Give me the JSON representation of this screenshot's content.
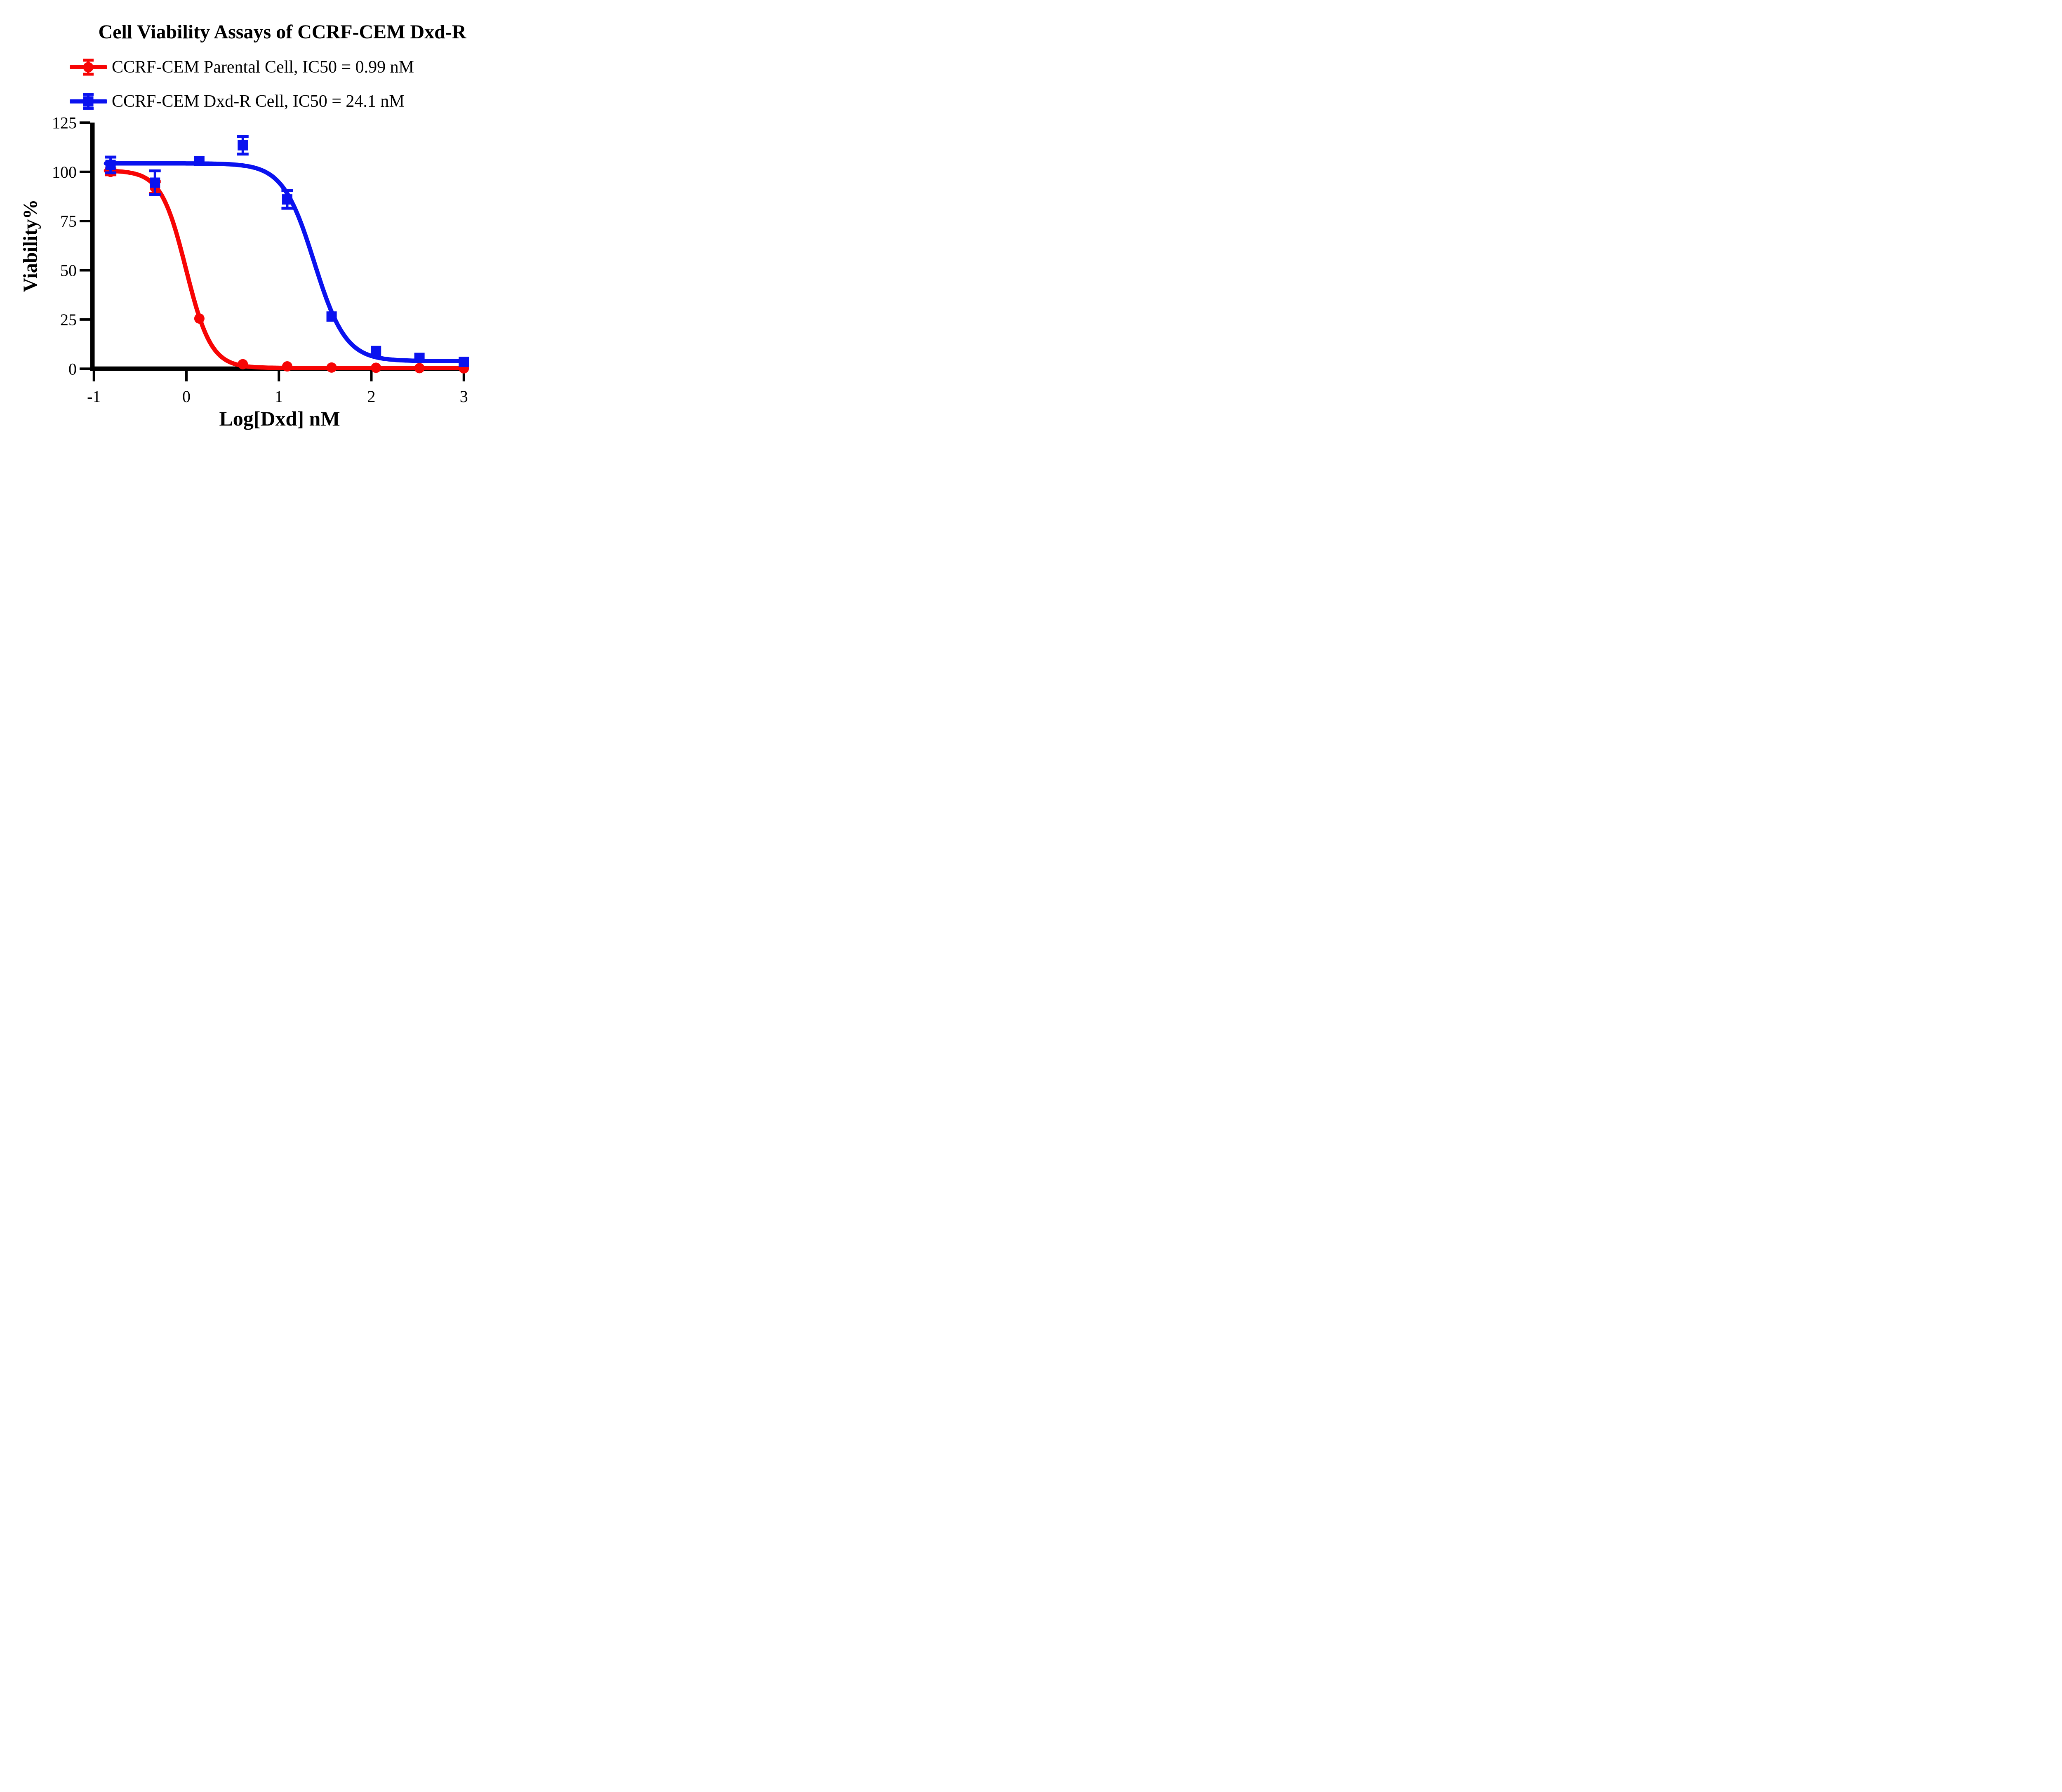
{
  "figure": {
    "background": "#ffffff"
  },
  "colors": {
    "red_series": "#f70505",
    "blue_series": "#0a12ef",
    "axis": "#000000"
  },
  "chart_data": {
    "type": "line",
    "title": "Cell Viability Assays of CCRF-CEM Dxd-R",
    "xlabel": "Log[Dxd] nM",
    "ylabel": "Viability%",
    "grid": false,
    "legend_position": "top-left",
    "xlim": [
      -1.03,
      3.06
    ],
    "ylim": [
      0,
      125
    ],
    "x_ticks": [
      "-1",
      "0",
      "1",
      "2",
      "3"
    ],
    "x_tick_values": [
      -1,
      0,
      1,
      2,
      3
    ],
    "y_ticks": [
      "0",
      "25",
      "50",
      "75",
      "100",
      "125"
    ],
    "y_tick_values": [
      0,
      25,
      50,
      75,
      100,
      125
    ],
    "series": [
      {
        "name": "CCRF-CEM Parental Cell, IC50 = 0.99 nM",
        "cell_line": "CCRF-CEM Parental Cell",
        "ic50_label": "IC50 = 0.99 nM",
        "color": "#f70505",
        "marker": "circle",
        "x": [
          -0.82,
          -0.34,
          0.14,
          0.61,
          1.09,
          1.57,
          2.05,
          2.52,
          3.0
        ],
        "y": [
          100,
          92,
          25.5,
          2.3,
          1.2,
          0.6,
          0.5,
          0.3,
          0.2
        ],
        "yerr": [
          1.5,
          3,
          0,
          0,
          0,
          0,
          0,
          0,
          0
        ],
        "fit_curve": {
          "top": 100.7,
          "bottom": 0.4,
          "logIC50": -0.004,
          "hill": 3.2,
          "x_start": -0.87,
          "x_end": 3.02
        }
      },
      {
        "name": "CCRF-CEM Dxd-R Cell, IC50 = 24.1 nM",
        "cell_line": "CCRF-CEM Dxd-R Cell",
        "ic50_label": "IC50 = 24.1 nM",
        "color": "#0a12ef",
        "marker": "square",
        "x": [
          -0.82,
          -0.34,
          0.14,
          0.61,
          1.09,
          1.57,
          2.05,
          2.52,
          3.0
        ],
        "y": [
          103.5,
          94.5,
          105.5,
          113.5,
          86,
          26.5,
          9,
          5.5,
          3.5
        ],
        "yerr": [
          4,
          6,
          0,
          4.5,
          4.5,
          0,
          0,
          0,
          0
        ],
        "fit_curve": {
          "top": 104.3,
          "bottom": 3.9,
          "logIC50": 1.382,
          "hill": 2.55,
          "x_start": -0.87,
          "x_end": 3.0
        }
      }
    ]
  }
}
